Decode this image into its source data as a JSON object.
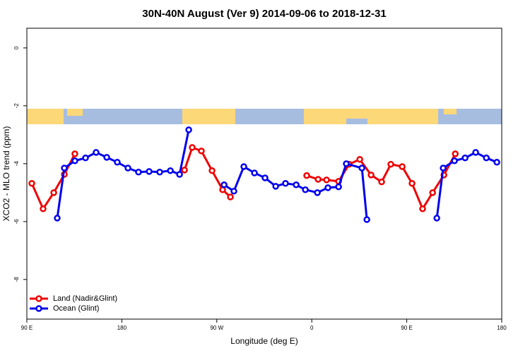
{
  "chart_data": {
    "type": "line",
    "title": "30N-40N August (Ver 9)   2014-09-06 to 2018-12-31",
    "x_label": "Longitude (deg E)",
    "y_label": "XCO2 - MLO trend (ppm)",
    "xlim": [
      90,
      540
    ],
    "xticks": [
      {
        "value": 90,
        "label": "90 E"
      },
      180,
      {
        "value": 270,
        "label": "90 W"
      },
      {
        "value": 360,
        "label": "0"
      },
      {
        "value": 450,
        "label": "90 E"
      },
      {
        "value": 540,
        "label": "180"
      }
    ],
    "ylim": [
      -9.37,
      0.68
    ],
    "yticks": [
      0,
      -2,
      -4,
      -6,
      -8
    ],
    "grid": false,
    "legend": "bottom-left",
    "series": [
      {
        "name": "Land (Nadir&Glint)",
        "color": "#ee0000",
        "x": [
          94.7,
          105.4,
          115.5,
          125.5,
          135.5,
          null,
          239.4,
          246.7,
          255.4,
          265.5,
          275.5,
          282.9,
          null,
          355.2,
          366,
          374,
          385.4,
          395.4,
          405.5,
          416.2,
          426.2,
          434.9,
          445.7,
          455,
          465,
          474.5,
          485.2,
          496
        ],
        "values": [
          -4.68,
          -5.56,
          -5.0,
          -4.37,
          -3.66,
          null,
          -4.22,
          -3.44,
          -3.56,
          -4.24,
          -4.9,
          -5.15,
          null,
          -4.41,
          -4.54,
          -4.56,
          -4.61,
          -4.02,
          -3.85,
          -4.39,
          -4.63,
          -4.02,
          -4.1,
          -4.68,
          -5.56,
          -5.0,
          -4.39,
          -3.66
        ]
      },
      {
        "name": "Ocean (Glint)",
        "color": "#0000ee",
        "x": [
          118.8,
          125.5,
          135.5,
          145.6,
          155.6,
          165.7,
          175.7,
          185.8,
          195.8,
          205.9,
          215.9,
          226,
          234.7,
          243.4,
          null,
          276.9,
          286.2,
          295.6,
          305.7,
          315.7,
          325.8,
          335.1,
          345.2,
          353.9,
          365.3,
          375.3,
          385.4,
          392.7,
          407.5,
          412.2,
          null,
          478.5,
          484.5,
          495.2,
          505.3,
          515.3,
          525.4,
          535.4
        ],
        "values": [
          -5.88,
          -4.15,
          -3.9,
          -3.8,
          -3.61,
          -3.78,
          -3.95,
          -4.15,
          -4.29,
          -4.27,
          -4.29,
          -4.24,
          -4.37,
          -2.83,
          null,
          -4.73,
          -4.95,
          -4.1,
          -4.32,
          -4.49,
          -4.78,
          -4.68,
          -4.73,
          -4.9,
          -5.0,
          -4.83,
          -4.8,
          -4.0,
          -4.15,
          -5.93,
          null,
          -5.88,
          -4.15,
          -3.9,
          -3.8,
          -3.61,
          -3.8,
          -3.95
        ]
      }
    ]
  }
}
